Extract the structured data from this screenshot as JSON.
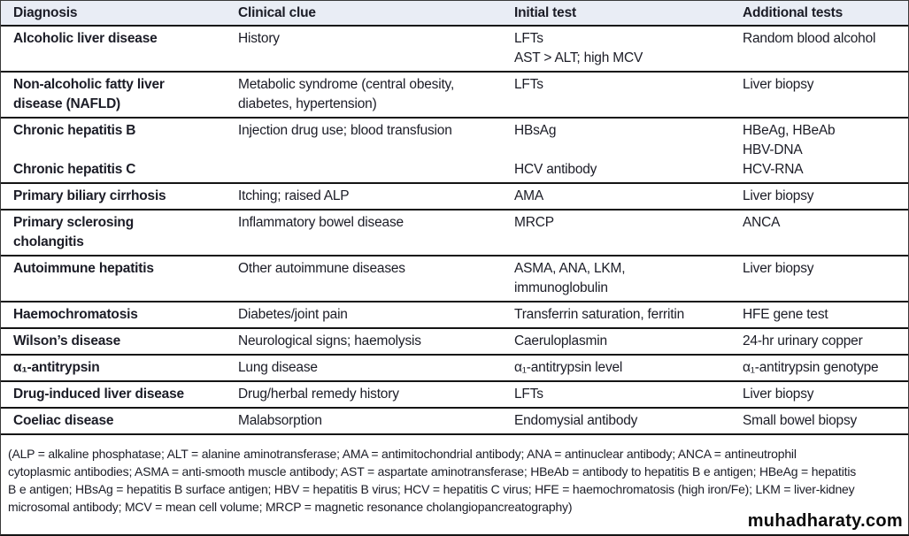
{
  "table": {
    "columns": [
      "Diagnosis",
      "Clinical clue",
      "Initial test",
      "Additional tests"
    ],
    "rows": [
      {
        "d": [
          "Alcoholic liver disease"
        ],
        "c": [
          "History"
        ],
        "i": [
          "LFTs",
          "AST > ALT; high MCV"
        ],
        "a": [
          "Random blood alcohol"
        ]
      },
      {
        "d": [
          "Non-alcoholic fatty liver",
          "disease (NAFLD)"
        ],
        "c": [
          "Metabolic syndrome (central obesity,",
          "diabetes, hypertension)"
        ],
        "i": [
          "LFTs"
        ],
        "a": [
          "Liver biopsy"
        ]
      },
      {
        "d": [
          "Chronic hepatitis B",
          "",
          "Chronic hepatitis C"
        ],
        "c": [
          "Injection drug use; blood transfusion"
        ],
        "i": [
          "HBsAg",
          "",
          "HCV antibody"
        ],
        "a": [
          "HBeAg, HBeAb",
          "HBV-DNA",
          "HCV-RNA"
        ]
      },
      {
        "d": [
          "Primary biliary cirrhosis"
        ],
        "c": [
          "Itching; raised ALP"
        ],
        "i": [
          "AMA"
        ],
        "a": [
          "Liver biopsy"
        ]
      },
      {
        "d": [
          "Primary sclerosing",
          "cholangitis"
        ],
        "c": [
          "Inflammatory bowel disease"
        ],
        "i": [
          "MRCP"
        ],
        "a": [
          "ANCA"
        ]
      },
      {
        "d": [
          "Autoimmune hepatitis"
        ],
        "c": [
          "Other autoimmune diseases"
        ],
        "i": [
          "ASMA, ANA, LKM,",
          "immunoglobulin"
        ],
        "a": [
          "Liver biopsy"
        ]
      },
      {
        "d": [
          "Haemochromatosis"
        ],
        "c": [
          "Diabetes/joint pain"
        ],
        "i": [
          "Transferrin saturation, ferritin"
        ],
        "a": [
          "HFE gene test"
        ]
      },
      {
        "d": [
          "Wilson’s disease"
        ],
        "c": [
          "Neurological signs; haemolysis"
        ],
        "i": [
          "Caeruloplasmin"
        ],
        "a": [
          "24-hr urinary copper"
        ]
      },
      {
        "d": [
          "α₁-antitrypsin"
        ],
        "c": [
          "Lung disease"
        ],
        "i": [
          "α₁-antitrypsin level"
        ],
        "a": [
          "α₁-antitrypsin genotype"
        ]
      },
      {
        "d": [
          "Drug-induced liver disease"
        ],
        "c": [
          "Drug/herbal remedy history"
        ],
        "i": [
          "LFTs"
        ],
        "a": [
          "Liver biopsy"
        ]
      },
      {
        "d": [
          "Coeliac disease"
        ],
        "c": [
          "Malabsorption"
        ],
        "i": [
          "Endomysial antibody"
        ],
        "a": [
          "Small bowel biopsy"
        ]
      }
    ]
  },
  "footnote": {
    "lines": [
      "(ALP = alkaline phosphatase; ALT = alanine aminotransferase; AMA = antimitochondrial antibody; ANA = antinuclear antibody; ANCA = antineutrophil",
      "cytoplasmic antibodies; ASMA = anti-smooth muscle antibody; AST = aspartate aminotransferase; HBeAb = antibody to hepatitis B e antigen; HBeAg = hepatitis",
      "B e antigen; HBsAg = hepatitis B surface antigen; HBV = hepatitis B virus; HCV = hepatitis C virus; HFE = haemochromatosis (high iron/Fe); LKM = liver-kidney",
      "microsomal antibody; MCV = mean cell volume; MRCP = magnetic resonance cholangiopancreatography)"
    ]
  },
  "watermark": "muhadharaty.com",
  "colors": {
    "header_bg": "#e9edf5",
    "text": "#1b1c26",
    "rule": "#141414"
  }
}
